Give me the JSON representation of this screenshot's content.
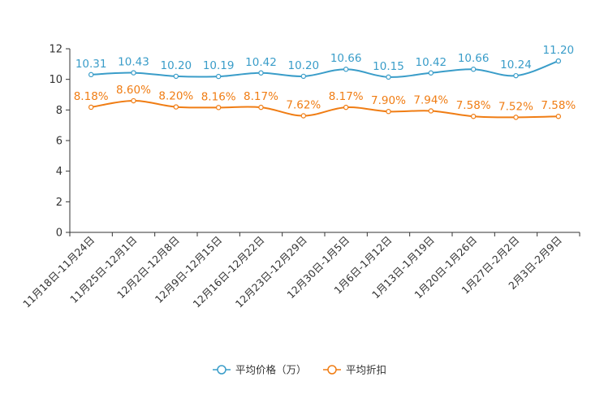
{
  "chart_data": {
    "type": "line",
    "title": "",
    "xlabel": "",
    "ylabel": "",
    "ylim": [
      0,
      12
    ],
    "yticks": [
      0,
      2,
      4,
      6,
      8,
      10,
      12
    ],
    "grid": false,
    "legend_position": "bottom",
    "categories": [
      "11月18日-11月24日",
      "11月25日-12月1日",
      "12月2日-12月8日",
      "12月9日-12月15日",
      "12月16日-12月22日",
      "12月23日-12月29日",
      "12月30日-1月5日",
      "1月6日-1月12日",
      "1月13日-1月19日",
      "1月20日-1月26日",
      "1月27日-2月2日",
      "2月3日-2月9日"
    ],
    "series": [
      {
        "name": "平均价格（万）",
        "color": "#3a9dc9",
        "values": [
          10.31,
          10.43,
          10.2,
          10.19,
          10.42,
          10.2,
          10.66,
          10.15,
          10.42,
          10.66,
          10.24,
          11.2
        ],
        "labels": [
          "10.31",
          "10.43",
          "10.20",
          "10.19",
          "10.42",
          "10.20",
          "10.66",
          "10.15",
          "10.42",
          "10.66",
          "10.24",
          "11.20"
        ]
      },
      {
        "name": "平均折扣",
        "color": "#f07d14",
        "values": [
          8.18,
          8.6,
          8.2,
          8.16,
          8.17,
          7.62,
          8.17,
          7.9,
          7.94,
          7.58,
          7.52,
          7.58
        ],
        "labels": [
          "8.18%",
          "8.60%",
          "8.20%",
          "8.16%",
          "8.17%",
          "7.62%",
          "8.17%",
          "7.90%",
          "7.94%",
          "7.58%",
          "7.52%",
          "7.58%"
        ]
      }
    ]
  }
}
